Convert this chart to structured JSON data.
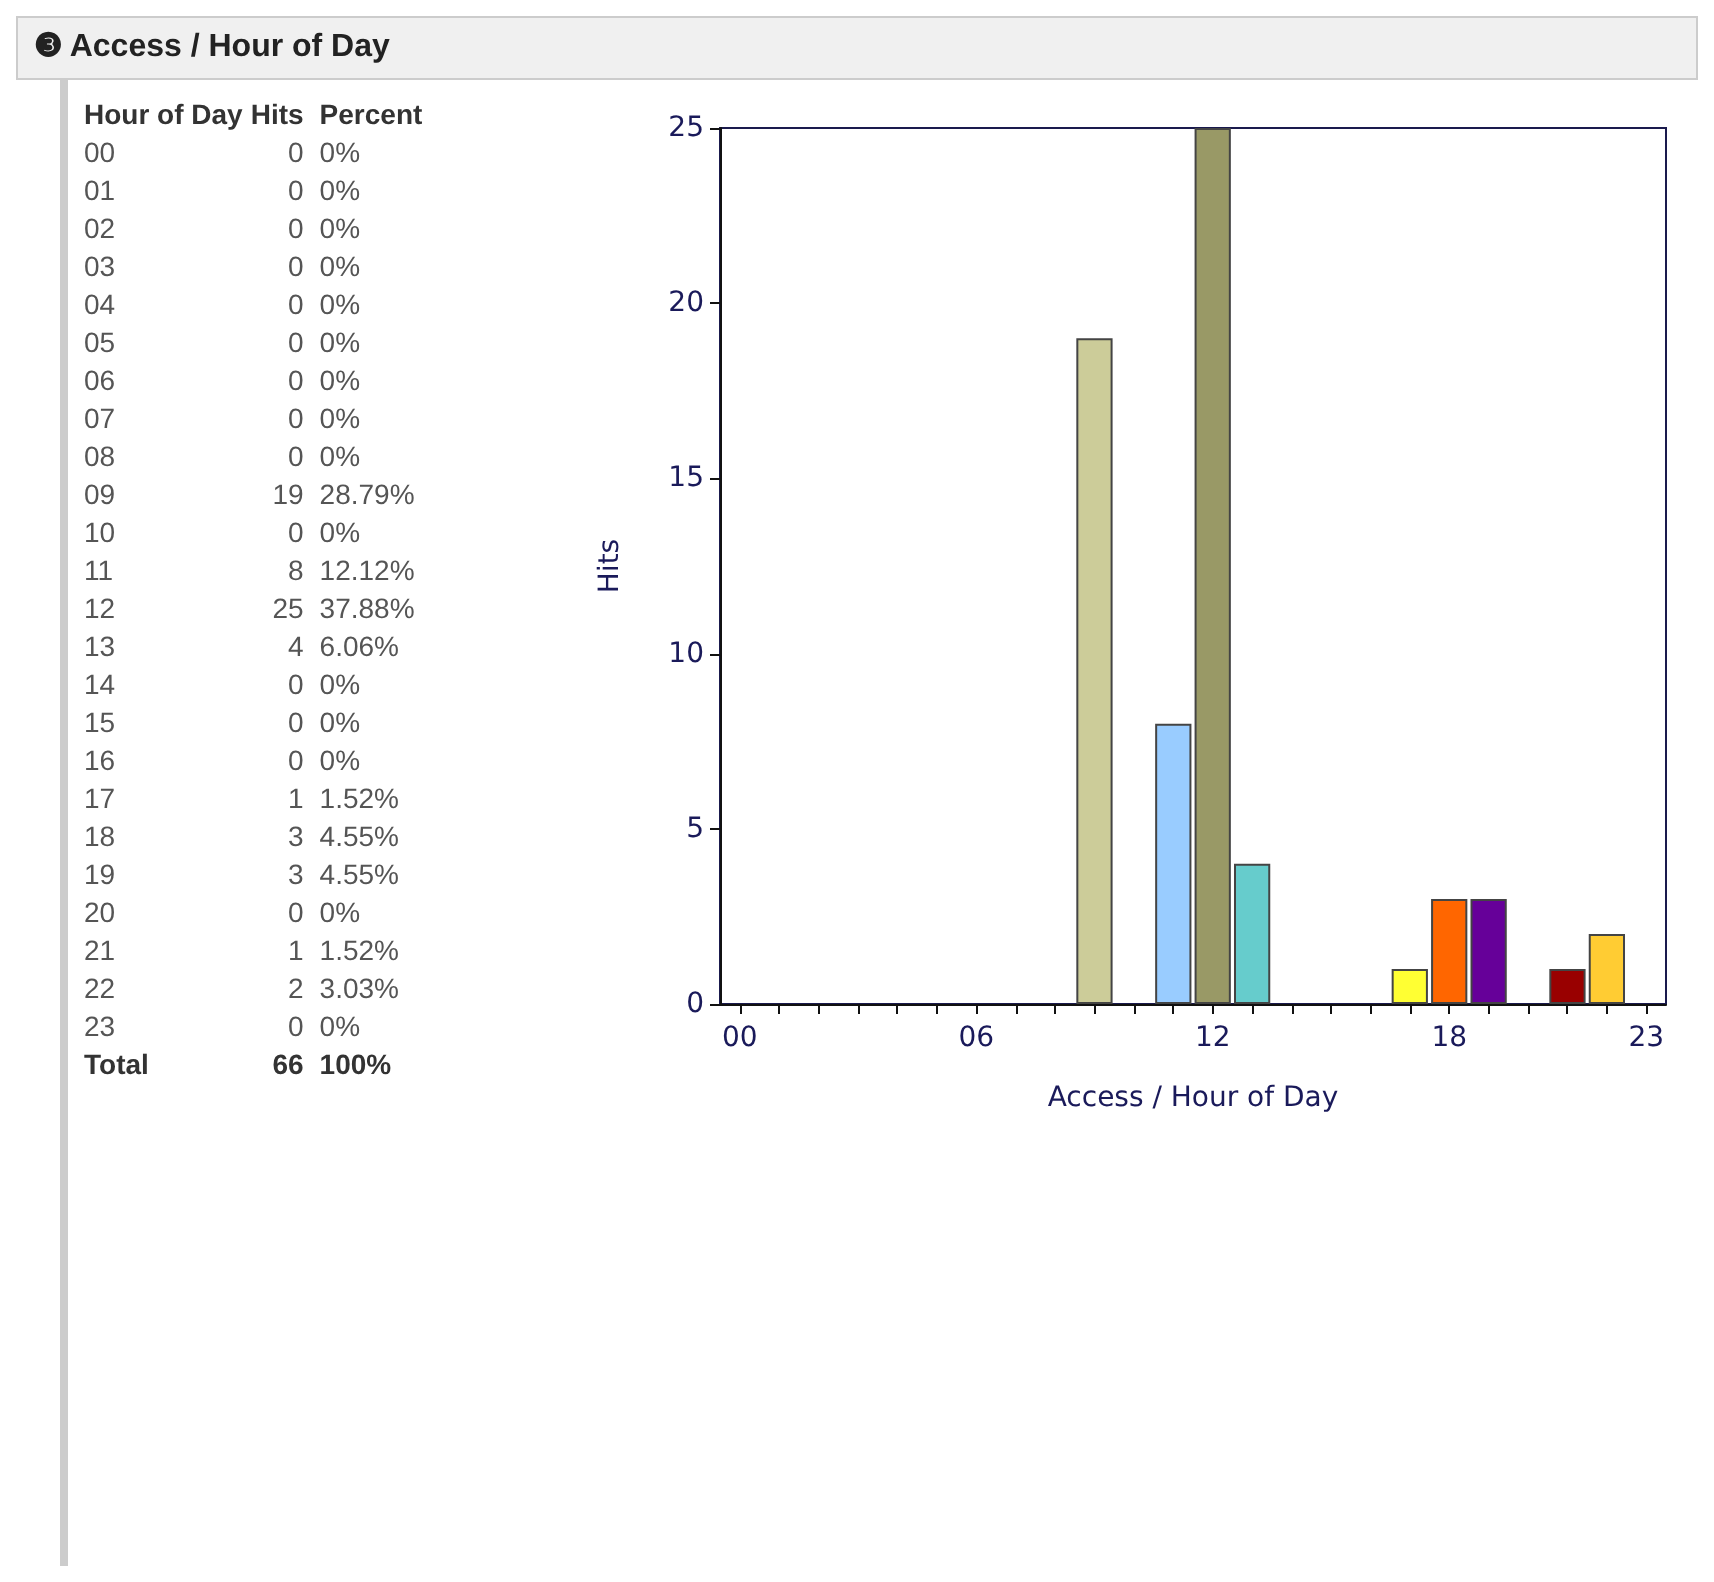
{
  "chart_data": {
    "type": "bar",
    "title": "❸ Access / Hour of Day",
    "xlabel": "Access / Hour of Day",
    "ylabel": "Hits",
    "categories": [
      "00",
      null,
      null,
      null,
      null,
      null,
      "06",
      null,
      null,
      null,
      null,
      null,
      "12",
      null,
      null,
      null,
      null,
      null,
      "18",
      null,
      null,
      null,
      null,
      "23"
    ],
    "values": [
      0,
      0,
      0,
      0,
      0,
      0,
      0,
      0,
      0,
      19,
      0,
      8,
      25,
      4,
      0,
      0,
      0,
      1,
      3,
      3,
      0,
      1,
      2,
      0
    ],
    "colors": [
      null,
      null,
      null,
      null,
      null,
      null,
      null,
      null,
      null,
      "#cccc99",
      null,
      "#99ccff",
      "#999966",
      "#66cccc",
      null,
      null,
      null,
      "#ffff33",
      "#ff6600",
      "#660099",
      null,
      "#990000",
      "#ffcc33",
      null
    ],
    "ylim": [
      0,
      25
    ],
    "yticks": [
      0,
      5,
      10,
      15,
      20,
      25
    ],
    "grid": false,
    "annotations": [
      "Hour of Day",
      "Hits",
      "Percent",
      "00",
      "0",
      "0%",
      "01",
      "0",
      "0%",
      "02",
      "0",
      "0%",
      "03",
      "0",
      "0%",
      "04",
      "0",
      "0%",
      "05",
      "0",
      "0%",
      "06",
      "0",
      "0%",
      "07",
      "0",
      "0%",
      "08",
      "0",
      "0%",
      "09",
      "19",
      "28.79%",
      "10",
      "0",
      "0%",
      "11",
      "8",
      "12.12%",
      "12",
      "25",
      "37.88%",
      "13",
      "4",
      "6.06%",
      "14",
      "0",
      "0%",
      "15",
      "0",
      "0%",
      "16",
      "0",
      "0%",
      "17",
      "1",
      "1.52%",
      "18",
      "3",
      "4.55%",
      "19",
      "3",
      "4.55%",
      "20",
      "0",
      "0%",
      "21",
      "1",
      "1.52%",
      "22",
      "2",
      "3.03%",
      "23",
      "0",
      "0%",
      "Total",
      "66",
      "100%"
    ]
  }
}
